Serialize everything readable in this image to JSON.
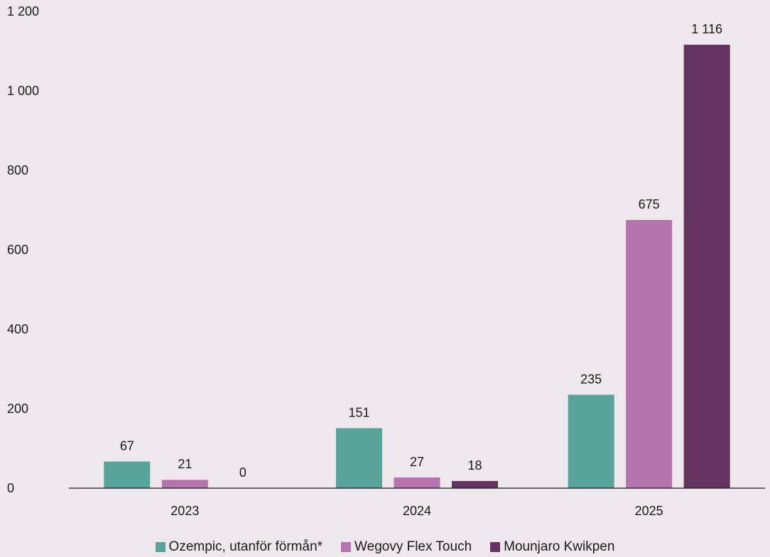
{
  "chart_data": {
    "type": "bar",
    "categories": [
      "2023",
      "2024",
      "2025"
    ],
    "series": [
      {
        "name": "Ozempic, utanför förmån*",
        "color": "#58A39A",
        "values": [
          67,
          151,
          235
        ]
      },
      {
        "name": "Wegovy Flex Touch",
        "color": "#B674AF",
        "values": [
          21,
          27,
          675
        ]
      },
      {
        "name": "Mounjaro Kwikpen",
        "color": "#643360",
        "values": [
          0,
          18,
          1116
        ]
      }
    ],
    "value_labels": [
      [
        "67",
        "151",
        "235"
      ],
      [
        "21",
        "27",
        "675"
      ],
      [
        "0",
        "18",
        "1 116"
      ]
    ],
    "ylim": [
      0,
      1200
    ],
    "yticks": [
      0,
      200,
      400,
      600,
      800,
      1000,
      1200
    ],
    "ytick_labels": [
      "0",
      "200",
      "400",
      "600",
      "800",
      "1 000",
      "1 200"
    ],
    "grid": false,
    "legend_position": "bottom",
    "background": "#EEE8EC"
  }
}
